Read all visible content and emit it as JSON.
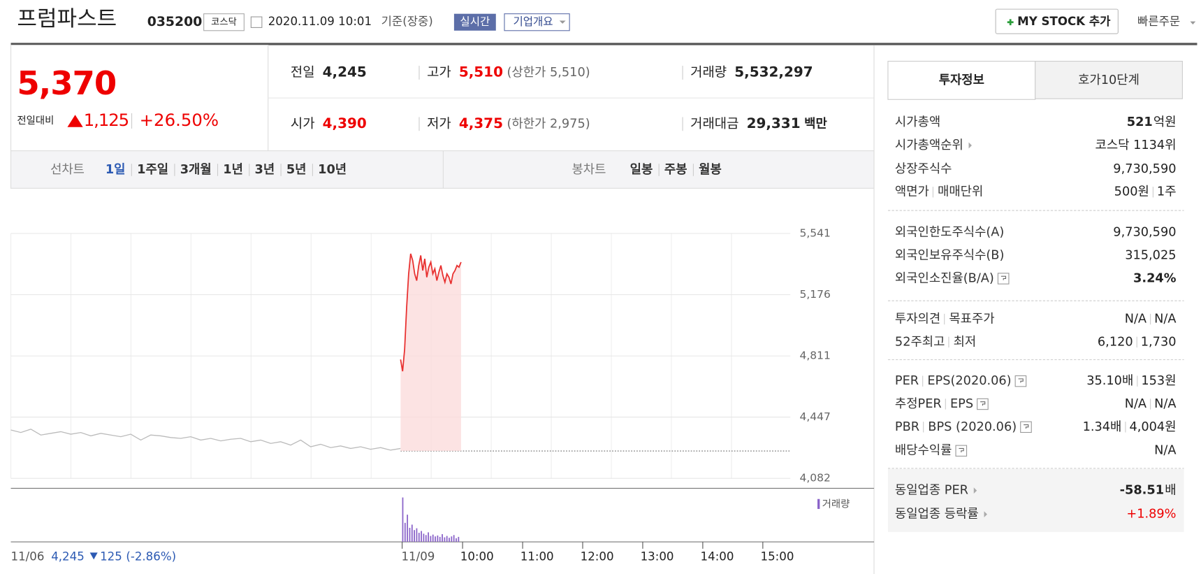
{
  "header": {
    "name": "프럼파스트",
    "code": "035200",
    "market": "코스닥",
    "datetime": "2020.11.09 10:01",
    "basis": "기준(장중)",
    "realtime": "실시간",
    "overview": "기업개요",
    "my_stock": "MY STOCK 추가",
    "quick_order": "빠른주문"
  },
  "price": {
    "current": "5,370",
    "change_label": "전일대비",
    "change": "1,125",
    "rate": "+26.50%"
  },
  "summary": [
    [
      {
        "label": "전일",
        "value": "4,245",
        "color": "#222"
      },
      {
        "label": "고가",
        "value": "5,510",
        "extra": "(상한가 5,510)",
        "color": "#e00"
      },
      {
        "label": "거래량",
        "value": "5,532,297",
        "color": "#222"
      }
    ],
    [
      {
        "label": "시가",
        "value": "4,390",
        "color": "#e00"
      },
      {
        "label": "저가",
        "value": "4,375",
        "extra": "(하한가 2,975)",
        "color": "#e00"
      },
      {
        "label": "거래대금",
        "value": "29,331",
        "extra": "백만",
        "color": "#222"
      }
    ]
  ],
  "chart_tabs": {
    "line_label": "선차트",
    "line_periods": [
      "1일",
      "1주일",
      "3개월",
      "1년",
      "3년",
      "5년",
      "10년"
    ],
    "selected": 0,
    "candle_label": "봉차트",
    "candle_periods": [
      "일봉",
      "주봉",
      "월봉"
    ]
  },
  "chart": {
    "type": "line",
    "ylim": [
      4082,
      5541
    ],
    "yticks": [
      {
        "value": 5541,
        "label": "5,541"
      },
      {
        "value": 5176,
        "label": "5,176"
      },
      {
        "value": 4811,
        "label": "4,811"
      },
      {
        "value": 4447,
        "label": "4,447"
      },
      {
        "value": 4082,
        "label": "4,082"
      }
    ],
    "baseline": 4245,
    "previous": {
      "color": "#bbbbbb",
      "values": [
        4370,
        4355,
        4375,
        4340,
        4350,
        4360,
        4345,
        4355,
        4335,
        4350,
        4340,
        4330,
        4345,
        4310,
        4340,
        4335,
        4325,
        4320,
        4330,
        4310,
        4320,
        4305,
        4315,
        4320,
        4300,
        4310,
        4290,
        4300,
        4280,
        4310,
        4270,
        4285,
        4265,
        4275,
        4260,
        4270,
        4255,
        4265,
        4250,
        4260
      ]
    },
    "today": {
      "color": "#e8302f",
      "values": [
        4790,
        4720,
        4850,
        5100,
        5300,
        5420,
        5380,
        5300,
        5260,
        5350,
        5410,
        5320,
        5390,
        5280,
        5340,
        5370,
        5300,
        5330,
        5260,
        5310,
        5350,
        5290,
        5250,
        5300,
        5280,
        5240,
        5300,
        5320,
        5350,
        5340,
        5370
      ]
    },
    "volume_label": "거래량",
    "volume_color": "#8a63c9",
    "volume": [
      980000,
      420000,
      600000,
      310000,
      380000,
      260000,
      300000,
      200000,
      240000,
      180000,
      150000,
      210000,
      130000,
      160000,
      120000,
      140000,
      110000,
      170000,
      100000,
      130000,
      90000,
      120000,
      150000,
      80000,
      110000
    ],
    "prev_date": "11/06",
    "prev_close": "4,245",
    "prev_change": "125",
    "prev_rate": "(-2.86%)",
    "today_date": "11/09",
    "time_labels": [
      "10:00",
      "11:00",
      "12:00",
      "13:00",
      "14:00",
      "15:00"
    ]
  },
  "info": {
    "tabs": [
      "투자정보",
      "호가10단계"
    ],
    "sections": [
      [
        {
          "label": [
            "시가총액"
          ],
          "values": [
            "521"
          ],
          "unit": "억원",
          "bold": true
        },
        {
          "label": [
            "시가총액순위"
          ],
          "arrow": true,
          "values": [
            "코스닥 1134위"
          ]
        },
        {
          "label": [
            "상장주식수"
          ],
          "values": [
            "9,730,590"
          ]
        },
        {
          "label": [
            "액면가",
            "매매단위"
          ],
          "values": [
            "500원",
            "1주"
          ]
        }
      ],
      [
        {
          "label": [
            "외국인한도주식수(A)"
          ],
          "values": [
            "9,730,590"
          ]
        },
        {
          "label": [
            "외국인보유주식수(B)"
          ],
          "values": [
            "315,025"
          ]
        },
        {
          "label": [
            "외국인소진율(B/A)"
          ],
          "help": true,
          "values": [
            "3.24%"
          ],
          "bold": true
        }
      ],
      [
        {
          "label": [
            "투자의견",
            "목표주가"
          ],
          "values": [
            "N/A",
            "N/A"
          ]
        },
        {
          "label": [
            "52주최고",
            "최저"
          ],
          "values": [
            "6,120",
            "1,730"
          ]
        }
      ],
      [
        {
          "label": [
            "PER",
            "EPS(2020.06)"
          ],
          "help": true,
          "values": [
            "35.10배",
            "153원"
          ]
        },
        {
          "label": [
            "추정PER",
            "EPS"
          ],
          "help": true,
          "values": [
            "N/A",
            "N/A"
          ]
        },
        {
          "label": [
            "PBR",
            "BPS (2020.06)"
          ],
          "help": true,
          "values": [
            "1.34배",
            "4,004원"
          ]
        },
        {
          "label": [
            "배당수익률"
          ],
          "help": true,
          "values": [
            "N/A"
          ]
        }
      ],
      [
        {
          "label": [
            "동일업종 PER"
          ],
          "arrow": true,
          "values": [
            "-58.51"
          ],
          "unit": "배",
          "bold": true
        },
        {
          "label": [
            "동일업종 등락률"
          ],
          "arrow": true,
          "values": [
            "+1.89%"
          ],
          "color": "#e00"
        }
      ]
    ]
  }
}
